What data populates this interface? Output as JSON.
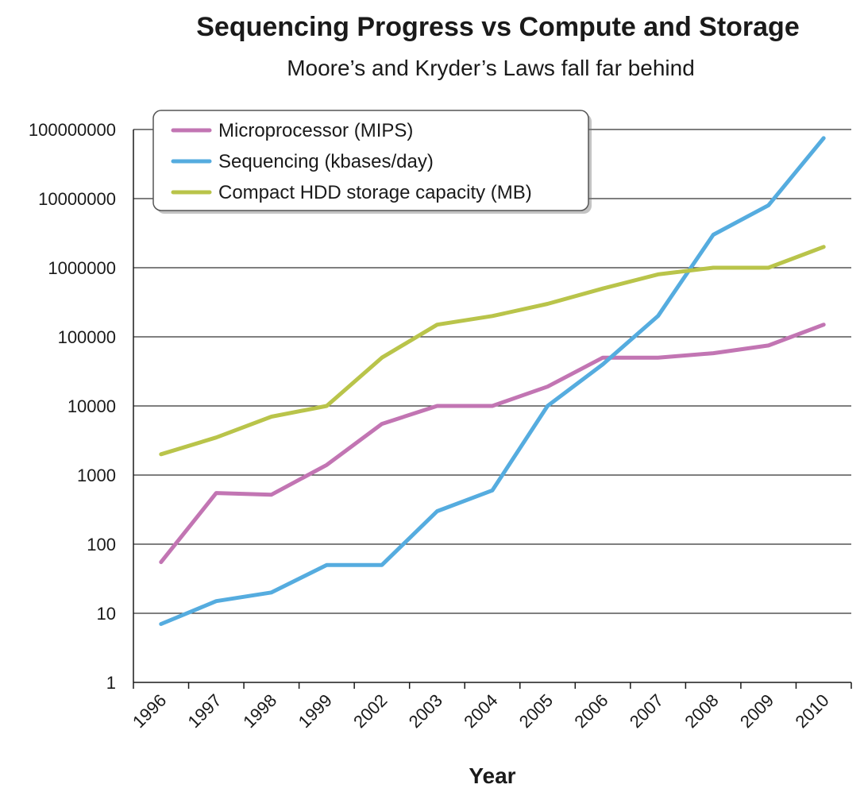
{
  "chart_data": {
    "type": "line",
    "title": "Sequencing Progress vs Compute and Storage",
    "subtitle": "Moore’s and Kryder’s Laws fall far behind",
    "xlabel": "Year",
    "ylabel": "",
    "yscale": "log",
    "ylim": [
      1,
      100000000
    ],
    "yticks": [
      "1",
      "10",
      "100",
      "1000",
      "10000",
      "100000",
      "1000000",
      "10000000",
      "100000000"
    ],
    "grid": "horizontal",
    "legend_position": "top-left",
    "categories": [
      "1996",
      "1997",
      "1998",
      "1999",
      "2002",
      "2003",
      "2004",
      "2005",
      "2006",
      "2007",
      "2008",
      "2009",
      "2010"
    ],
    "series": [
      {
        "name": "Microprocessor (MIPS)",
        "color": "#c275b3",
        "values": [
          55,
          550,
          520,
          1400,
          5500,
          10000,
          10000,
          19000,
          50000,
          50000,
          58000,
          75000,
          150000
        ]
      },
      {
        "name": "Sequencing (kbases/day)",
        "color": "#55acdf",
        "values": [
          7,
          15,
          20,
          50,
          50,
          300,
          600,
          10000,
          40000,
          200000,
          3000000,
          8000000,
          75000000
        ]
      },
      {
        "name": "Compact HDD storage capacity (MB)",
        "color": "#b9c44a",
        "values": [
          2000,
          3500,
          7000,
          10000,
          50000,
          150000,
          200000,
          300000,
          500000,
          800000,
          1000000,
          1000000,
          2000000
        ]
      }
    ]
  }
}
